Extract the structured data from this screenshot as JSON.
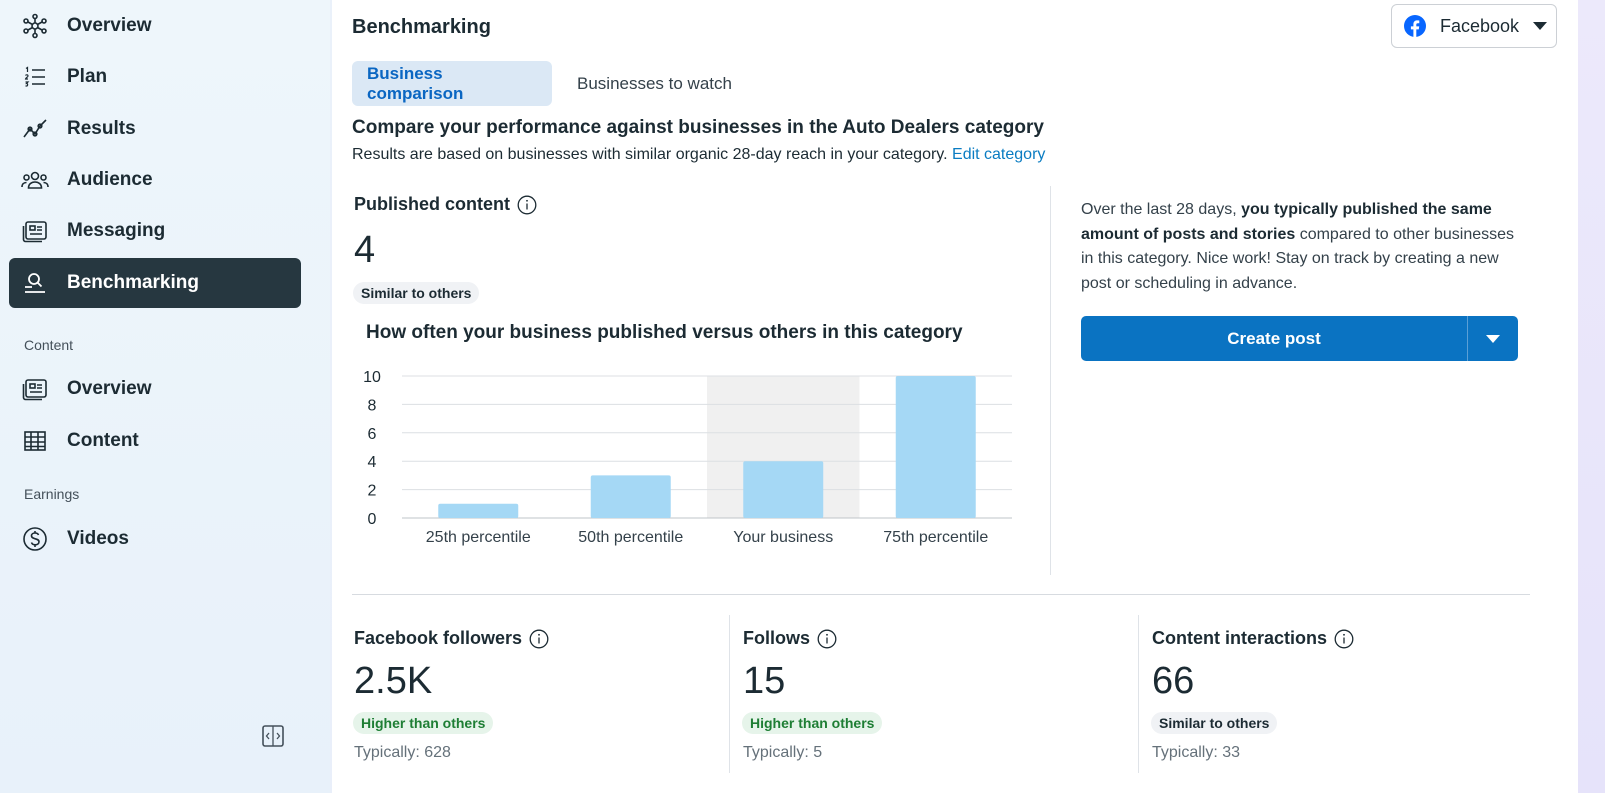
{
  "sidebar": {
    "items": [
      {
        "label": "Overview",
        "icon": "network-icon"
      },
      {
        "label": "Plan",
        "icon": "numbered-list-icon"
      },
      {
        "label": "Results",
        "icon": "trend-line-icon"
      },
      {
        "label": "Audience",
        "icon": "people-icon"
      },
      {
        "label": "Messaging",
        "icon": "message-card-icon"
      },
      {
        "label": "Benchmarking",
        "icon": "benchmark-icon",
        "active": true
      }
    ],
    "content_section": {
      "label": "Content",
      "items": [
        {
          "label": "Overview",
          "icon": "content-card-icon"
        },
        {
          "label": "Content",
          "icon": "table-icon"
        }
      ]
    },
    "earnings_section": {
      "label": "Earnings",
      "items": [
        {
          "label": "Videos",
          "icon": "dollar-circle-icon"
        }
      ]
    }
  },
  "header": {
    "title": "Benchmarking",
    "platform": "Facebook"
  },
  "tabs": [
    {
      "label": "Business comparison",
      "active": true
    },
    {
      "label": "Businesses to watch",
      "active": false
    }
  ],
  "comparison": {
    "headline": "Compare your performance against businesses in the Auto Dealers category",
    "subline": "Results are based on businesses with similar organic 28-day reach in your category.",
    "edit_link": "Edit category"
  },
  "published": {
    "title": "Published content",
    "value": "4",
    "badge": "Similar to others",
    "chart_title": "How often your business published versus others in this category"
  },
  "insight": {
    "prefix": "Over the last 28 days, ",
    "bold": "you typically published the same amount of posts and stories",
    "suffix": " compared to other businesses in this category. Nice work! Stay on track by creating a new post or scheduling in advance.",
    "button_label": "Create post"
  },
  "metrics": [
    {
      "title": "Facebook followers",
      "value": "2.5K",
      "badge": "Higher than others",
      "badge_kind": "good",
      "typical": "Typically: 628"
    },
    {
      "title": "Follows",
      "value": "15",
      "badge": "Higher than others",
      "badge_kind": "good",
      "typical": "Typically: 5"
    },
    {
      "title": "Content interactions",
      "value": "66",
      "badge": "Similar to others",
      "badge_kind": "neutral",
      "typical": "Typically: 33"
    }
  ],
  "colors": {
    "bar": "#a5d8f5",
    "highlight_bg": "#f0f0f0",
    "accent": "#0a73c2",
    "active_nav": "#263740"
  },
  "chart_data": {
    "type": "bar",
    "title": "How often your business published versus others in this category",
    "categories": [
      "25th percentile",
      "50th percentile",
      "Your business",
      "75th percentile"
    ],
    "values": [
      1,
      3,
      4,
      10
    ],
    "highlight_index": 2,
    "ylim": [
      0,
      10
    ],
    "yticks": [
      "0",
      "2",
      "4",
      "6",
      "8",
      "10"
    ],
    "grid": true,
    "xlabel": "",
    "ylabel": ""
  }
}
